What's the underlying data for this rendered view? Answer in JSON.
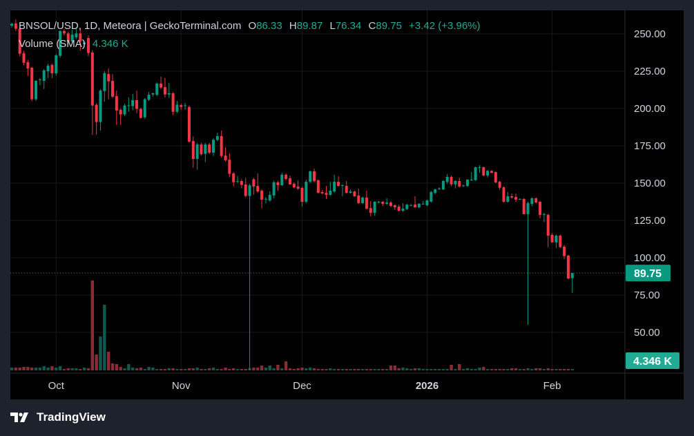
{
  "header": {
    "symbol_title": "BNSOL/USD, 1D, Meteora | GeckoTerminal.com",
    "open_label": "O",
    "open": "86.33",
    "high_label": "H",
    "high": "89.87",
    "low_label": "L",
    "low": "76.34",
    "close_label": "C",
    "close": "89.75",
    "change": "+3.42 (+3.96%)",
    "volume_label": "Volume (SMA)",
    "volume_value": "4.346 K"
  },
  "price_badge": "89.75",
  "volume_badge": "4.346 K",
  "branding": "TradingView",
  "colors": {
    "up": "#089981",
    "down": "#f23645",
    "up_volume": "#0e5a4e",
    "down_volume": "#8a2c35",
    "background": "#000000",
    "frame": "#1e222d"
  },
  "chart_data": {
    "type": "candlestick",
    "title": "BNSOL/USD, 1D, Meteora | GeckoTerminal.com",
    "y_ticks": [
      "250.00",
      "225.00",
      "200.00",
      "175.00",
      "150.00",
      "125.00",
      "100.00",
      "75.00",
      "50.00"
    ],
    "ylim": [
      38,
      255
    ],
    "x_ticks": [
      {
        "label": "Oct",
        "date": "2025-10-01"
      },
      {
        "label": "Nov",
        "date": "2025-11-01"
      },
      {
        "label": "Dec",
        "date": "2025-12-01"
      },
      {
        "label": "2026",
        "date": "2026-01-01"
      },
      {
        "label": "Feb",
        "date": "2026-02-01"
      }
    ],
    "grid": true,
    "last_price": 89.75,
    "volume_unit": "K",
    "columns": [
      "date",
      "open",
      "high",
      "low",
      "close",
      "volume"
    ],
    "candles": [
      [
        "2025-09-20",
        255.5,
        257.5,
        254,
        256.8,
        3
      ],
      [
        "2025-09-21",
        257,
        259.6,
        252,
        253.4,
        3
      ],
      [
        "2025-09-22",
        253.4,
        255,
        235,
        236.7,
        3
      ],
      [
        "2025-09-23",
        237,
        238.5,
        229,
        230.6,
        3.75
      ],
      [
        "2025-09-24",
        231,
        232.5,
        221.8,
        226.8,
        3.75
      ],
      [
        "2025-09-25",
        227.3,
        228,
        205,
        206.2,
        3
      ],
      [
        "2025-09-26",
        206.2,
        219,
        205,
        218.5,
        3
      ],
      [
        "2025-09-27",
        219,
        220.4,
        215.7,
        219.4,
        3
      ],
      [
        "2025-09-28",
        218.5,
        226.5,
        213,
        225.5,
        4.5
      ],
      [
        "2025-09-29",
        225,
        230,
        220.4,
        228.7,
        3
      ],
      [
        "2025-09-30",
        229.2,
        230,
        220.4,
        223.6,
        4.5
      ],
      [
        "2025-10-01",
        223.6,
        236.5,
        222,
        235.6,
        3
      ],
      [
        "2025-10-02",
        235.3,
        252.5,
        234,
        251.9,
        4.5
      ],
      [
        "2025-10-03",
        251.9,
        253,
        249,
        250.3,
        1.5
      ],
      [
        "2025-10-04",
        250.3,
        251.5,
        243,
        244.9,
        2.25
      ],
      [
        "2025-10-05",
        244.9,
        252.6,
        243.5,
        249.5,
        2.25
      ],
      [
        "2025-10-06",
        247.7,
        253.4,
        246.5,
        250.3,
        2.25
      ],
      [
        "2025-10-07",
        250.3,
        253.4,
        238.7,
        244.9,
        1.5
      ],
      [
        "2025-10-08",
        243,
        245.5,
        241,
        244.3,
        3
      ],
      [
        "2025-10-09",
        247.2,
        249,
        235,
        237.2,
        2.25
      ],
      [
        "2025-10-10",
        237.5,
        239,
        182.4,
        202,
        97.5
      ],
      [
        "2025-10-11",
        202.5,
        203.5,
        182.4,
        190.9,
        17.25
      ],
      [
        "2025-10-12",
        190.9,
        213,
        185.2,
        212,
        36.75
      ],
      [
        "2025-10-13",
        211.7,
        225,
        204.6,
        223.6,
        71.25
      ],
      [
        "2025-10-14",
        223.1,
        226.8,
        206.2,
        218.2,
        20.25
      ],
      [
        "2025-10-15",
        218.5,
        223.1,
        207,
        207.9,
        7.5
      ],
      [
        "2025-10-16",
        208.3,
        212,
        189,
        198.6,
        6.75
      ],
      [
        "2025-10-17",
        199.1,
        200,
        189,
        196,
        3.75
      ],
      [
        "2025-10-18",
        196,
        203,
        195,
        202,
        2.25
      ],
      [
        "2025-10-19",
        202,
        207.4,
        197.8,
        202.1,
        6.75
      ],
      [
        "2025-10-20",
        201.6,
        209.7,
        198.8,
        205.6,
        3
      ],
      [
        "2025-10-21",
        205.6,
        212,
        196.9,
        199.7,
        2.25
      ],
      [
        "2025-10-22",
        199.7,
        200.5,
        193.2,
        193.7,
        3
      ],
      [
        "2025-10-23",
        194.1,
        207,
        193,
        206.2,
        1.5
      ],
      [
        "2025-10-24",
        205.8,
        211.1,
        205,
        209.2,
        3.75
      ],
      [
        "2025-10-25",
        209.4,
        210.6,
        207.9,
        210.2,
        3
      ],
      [
        "2025-10-26",
        209.2,
        217.5,
        208.3,
        216.7,
        1.5
      ],
      [
        "2025-10-27",
        216.7,
        221.3,
        213,
        214,
        1.5
      ],
      [
        "2025-10-28",
        214.3,
        220.4,
        207.4,
        209.4,
        1.5
      ],
      [
        "2025-10-29",
        209.4,
        217.1,
        207.1,
        210.2,
        2.25
      ],
      [
        "2025-10-30",
        210.2,
        211,
        195.5,
        197.8,
        2.25
      ],
      [
        "2025-10-31",
        197.8,
        205.1,
        197,
        202.5,
        1.5
      ],
      [
        "2025-11-01",
        202.3,
        203,
        199.1,
        201,
        1.5
      ],
      [
        "2025-11-02",
        202.1,
        203.7,
        199.1,
        202.1,
        1.5
      ],
      [
        "2025-11-03",
        201,
        202,
        177,
        177.8,
        2.25
      ],
      [
        "2025-11-04",
        178.2,
        181.3,
        160.3,
        166.2,
        2.25
      ],
      [
        "2025-11-05",
        166.2,
        177,
        159,
        175.9,
        3
      ],
      [
        "2025-11-06",
        175.9,
        177,
        168.5,
        169.3,
        1.5
      ],
      [
        "2025-11-07",
        169.6,
        177,
        164,
        175.9,
        1.5
      ],
      [
        "2025-11-08",
        175.9,
        177,
        169.5,
        170.4,
        2.25
      ],
      [
        "2025-11-09",
        170.4,
        180,
        168.2,
        179,
        3
      ],
      [
        "2025-11-10",
        178.9,
        183.8,
        178,
        181.5,
        1.5
      ],
      [
        "2025-11-11",
        181.5,
        185.2,
        167,
        168.2,
        1.5
      ],
      [
        "2025-11-12",
        168.5,
        174,
        164.5,
        165.3,
        3
      ],
      [
        "2025-11-13",
        165.7,
        169.9,
        153.9,
        156.2,
        1.5
      ],
      [
        "2025-11-14",
        156.5,
        157.5,
        147.8,
        150.6,
        2.25
      ],
      [
        "2025-11-15",
        151,
        154.6,
        150,
        151.4,
        1.5
      ],
      [
        "2025-11-16",
        151.4,
        152.5,
        146.5,
        148.8,
        1.5
      ],
      [
        "2025-11-17",
        149.1,
        153.5,
        140.5,
        141.4,
        1.5
      ],
      [
        "2025-11-18",
        141.4,
        149.5,
        25,
        148.5,
        2.25
      ],
      [
        "2025-11-19",
        152.6,
        153.5,
        142.3,
        147.7,
        3
      ],
      [
        "2025-11-20",
        148.1,
        156.5,
        143.5,
        144.4,
        3
      ],
      [
        "2025-11-21",
        144.9,
        146,
        133,
        138.9,
        5.25
      ],
      [
        "2025-11-22",
        139.5,
        140.6,
        136.3,
        139.5,
        3
      ],
      [
        "2025-11-23",
        138.4,
        144.5,
        137.5,
        142.1,
        5.25
      ],
      [
        "2025-11-24",
        141.7,
        151.5,
        139.8,
        150.5,
        2.25
      ],
      [
        "2025-11-25",
        150.5,
        151.5,
        144.9,
        148.6,
        6
      ],
      [
        "2025-11-26",
        148.6,
        157,
        148,
        155.6,
        2.25
      ],
      [
        "2025-11-27",
        155.6,
        156.5,
        152,
        152.8,
        9.75
      ],
      [
        "2025-11-28",
        153.2,
        155,
        149,
        149.1,
        2.25
      ],
      [
        "2025-11-29",
        149.5,
        150.5,
        146.5,
        147.2,
        1.5
      ],
      [
        "2025-11-30",
        147.7,
        151.8,
        145.5,
        146.3,
        2.25
      ],
      [
        "2025-12-01",
        146.8,
        147.5,
        134.3,
        137.5,
        3
      ],
      [
        "2025-12-02",
        137.5,
        152.3,
        136.5,
        150.9,
        2.25
      ],
      [
        "2025-12-03",
        150.9,
        158.4,
        150,
        157.9,
        3
      ],
      [
        "2025-12-04",
        157.9,
        159.7,
        150.5,
        151.4,
        2.25
      ],
      [
        "2025-12-05",
        151.9,
        152.5,
        143,
        143.5,
        1.5
      ],
      [
        "2025-12-06",
        144,
        145.4,
        142.5,
        143.1,
        1.5
      ],
      [
        "2025-12-07",
        143.5,
        148.1,
        139.4,
        142.1,
        1.5
      ],
      [
        "2025-12-08",
        142.1,
        150.9,
        141.5,
        144.9,
        2.25
      ],
      [
        "2025-12-09",
        144.4,
        155.6,
        143.5,
        150.9,
        1.5
      ],
      [
        "2025-12-10",
        150.9,
        154.6,
        147.5,
        148.1,
        1.5
      ],
      [
        "2025-12-11",
        148.6,
        149.2,
        141.2,
        148.6,
        1.5
      ],
      [
        "2025-12-12",
        148.1,
        151.4,
        143,
        143.5,
        1.5
      ],
      [
        "2025-12-13",
        143.5,
        145.8,
        143,
        144.4,
        1.5
      ],
      [
        "2025-12-14",
        144.4,
        145,
        140.6,
        141.2,
        1.5
      ],
      [
        "2025-12-15",
        141.7,
        146.3,
        136,
        136.6,
        1.5
      ],
      [
        "2025-12-16",
        136.6,
        141,
        136,
        140.3,
        1.5
      ],
      [
        "2025-12-17",
        140.3,
        144.9,
        132.4,
        132.9,
        1.5
      ],
      [
        "2025-12-18",
        133.3,
        138,
        127.8,
        130.1,
        1.5
      ],
      [
        "2025-12-19",
        130.1,
        138,
        128.2,
        137.5,
        1.5
      ],
      [
        "2025-12-20",
        137.5,
        138,
        136.6,
        137.5,
        1.5
      ],
      [
        "2025-12-21",
        137.5,
        138,
        134.7,
        136.1,
        1.5
      ],
      [
        "2025-12-22",
        136.1,
        139.8,
        135.5,
        137,
        1.5
      ],
      [
        "2025-12-23",
        137,
        138,
        133.8,
        134.7,
        5.25
      ],
      [
        "2025-12-24",
        135.2,
        135.8,
        132,
        133.8,
        5.25
      ],
      [
        "2025-12-25",
        134.3,
        135.6,
        131,
        131.5,
        2.25
      ],
      [
        "2025-12-26",
        131.5,
        136.5,
        130.7,
        132.9,
        3
      ],
      [
        "2025-12-27",
        132.6,
        136,
        132,
        135.6,
        2.25
      ],
      [
        "2025-12-28",
        135.3,
        136,
        134.5,
        135.3,
        1.5
      ],
      [
        "2025-12-29",
        135.6,
        141.2,
        133.5,
        133.8,
        2.25
      ],
      [
        "2025-12-30",
        133.8,
        136.6,
        133,
        136.1,
        2.25
      ],
      [
        "2025-12-31",
        136.1,
        138,
        135.5,
        136.1,
        1.5
      ],
      [
        "2026-01-01",
        135.2,
        139,
        134.5,
        138.4,
        1.5
      ],
      [
        "2026-01-02",
        137.6,
        144.6,
        137,
        144.1,
        1.5
      ],
      [
        "2026-01-03",
        143.4,
        146.3,
        142.5,
        145.8,
        1.5
      ],
      [
        "2026-01-04",
        145.9,
        147.2,
        145.5,
        146.4,
        1.5
      ],
      [
        "2026-01-05",
        145.8,
        152,
        145.3,
        151.4,
        1.5
      ],
      [
        "2026-01-06",
        150.8,
        156,
        149.5,
        154.2,
        1.5
      ],
      [
        "2026-01-07",
        154.2,
        155,
        148,
        149.2,
        6
      ],
      [
        "2026-01-08",
        149.2,
        152,
        146.5,
        151.4,
        1.5
      ],
      [
        "2026-01-09",
        151.4,
        153.7,
        147,
        147.7,
        6.75
      ],
      [
        "2026-01-10",
        148.4,
        149,
        147.5,
        148.4,
        1.5
      ],
      [
        "2026-01-11",
        148.1,
        152.8,
        147.5,
        152.3,
        2.25
      ],
      [
        "2026-01-12",
        152,
        157.4,
        151.5,
        152.3,
        1.5
      ],
      [
        "2026-01-13",
        152,
        161,
        151.5,
        160.6,
        1.5
      ],
      [
        "2026-01-14",
        160.6,
        162,
        157,
        160.6,
        3
      ],
      [
        "2026-01-15",
        160.6,
        161,
        154.5,
        155.1,
        3.75
      ],
      [
        "2026-01-16",
        155.1,
        158.8,
        153.8,
        158.2,
        1.5
      ],
      [
        "2026-01-17",
        158.2,
        158.5,
        156.5,
        156.9,
        1.5
      ],
      [
        "2026-01-18",
        157.4,
        157.8,
        150,
        150.5,
        1.5
      ],
      [
        "2026-01-19",
        150.9,
        151.5,
        145.5,
        146.9,
        1.5
      ],
      [
        "2026-01-20",
        147.2,
        147.8,
        137,
        137.5,
        1.5
      ],
      [
        "2026-01-21",
        137.5,
        144,
        137,
        141.2,
        1.5
      ],
      [
        "2026-01-22",
        141.2,
        143,
        139.5,
        140.3,
        2.25
      ],
      [
        "2026-01-23",
        140.7,
        143,
        137.5,
        138.9,
        2.25
      ],
      [
        "2026-01-24",
        139.4,
        139.8,
        138.8,
        139.4,
        1.5
      ],
      [
        "2026-01-25",
        139.4,
        140,
        129,
        129.2,
        1.5
      ],
      [
        "2026-01-26",
        129.2,
        137.5,
        55,
        136.6,
        2.25
      ],
      [
        "2026-01-27",
        136.1,
        140.5,
        134.6,
        139.8,
        1.5
      ],
      [
        "2026-01-28",
        139.8,
        140.5,
        136.5,
        137,
        2.25
      ],
      [
        "2026-01-29",
        137.5,
        138,
        126.5,
        128.7,
        2.25
      ],
      [
        "2026-01-30",
        129.2,
        130.1,
        124,
        129.2,
        1.5
      ],
      [
        "2026-01-31",
        128.7,
        129.5,
        107,
        114.8,
        2.25
      ],
      [
        "2026-02-01",
        115.3,
        116.5,
        110,
        110.3,
        1.5
      ],
      [
        "2026-02-02",
        110.3,
        115.5,
        106.6,
        114.8,
        1.5
      ],
      [
        "2026-02-03",
        114.8,
        115.5,
        106.5,
        107.1,
        1.5
      ],
      [
        "2026-02-04",
        107.4,
        108.5,
        99,
        101.1,
        1.5
      ],
      [
        "2026-02-05",
        101.4,
        102,
        85.5,
        86.1,
        1.5
      ],
      [
        "2026-02-06",
        86.33,
        89.87,
        76.34,
        89.75,
        1.5
      ]
    ]
  }
}
